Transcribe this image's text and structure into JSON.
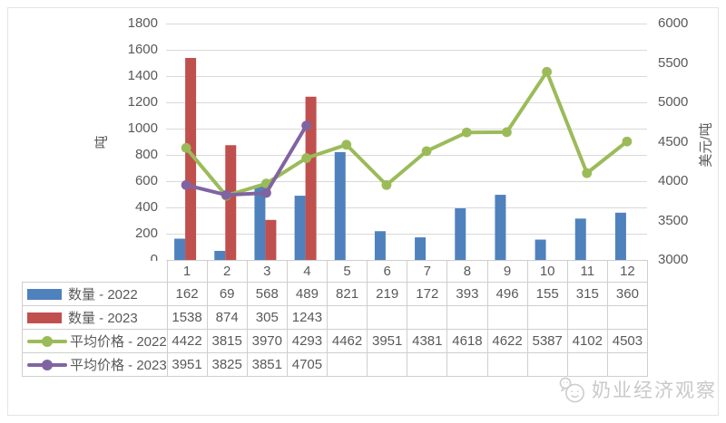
{
  "watermark": {
    "text": "奶业经济观察"
  },
  "chart_data": {
    "type": "combo-bar-line",
    "title": "",
    "categories": [
      "1",
      "2",
      "3",
      "4",
      "5",
      "6",
      "7",
      "8",
      "9",
      "10",
      "11",
      "12"
    ],
    "series": [
      {
        "name": "数量 - 2022",
        "type": "bar",
        "axis": "left",
        "color": "#4F81BD",
        "values": [
          162,
          69,
          568,
          489,
          821,
          219,
          172,
          393,
          496,
          155,
          315,
          360
        ]
      },
      {
        "name": "数量 - 2023",
        "type": "bar",
        "axis": "left",
        "color": "#C0504D",
        "values": [
          1538,
          874,
          305,
          1243,
          null,
          null,
          null,
          null,
          null,
          null,
          null,
          null
        ]
      },
      {
        "name": "平均价格 - 2022",
        "type": "line",
        "axis": "right",
        "color": "#9BBB59",
        "values": [
          4422,
          3815,
          3970,
          4293,
          4462,
          3951,
          4381,
          4618,
          4622,
          5387,
          4102,
          4503
        ]
      },
      {
        "name": "平均价格 - 2023",
        "type": "line",
        "axis": "right",
        "color": "#8064A2",
        "values": [
          3951,
          3825,
          3851,
          4705,
          null,
          null,
          null,
          null,
          null,
          null,
          null,
          null
        ]
      }
    ],
    "left_axis": {
      "title": "吨",
      "min": 0,
      "max": 1800,
      "step": 200
    },
    "right_axis": {
      "title": "美元/吨",
      "min": 3000,
      "max": 6000,
      "step": 500
    },
    "grid": true,
    "legend_position": "table-left",
    "colors": {
      "gridline": "#D9D9D9",
      "table_border": "#CFCFCF",
      "text": "#595959",
      "watermark": "#C9C9C9"
    }
  }
}
